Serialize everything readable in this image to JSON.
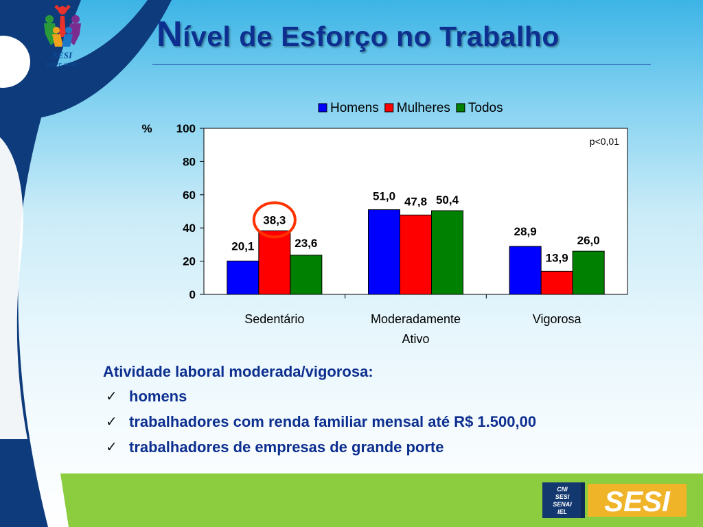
{
  "brand": {
    "logo_name": "SESI",
    "logo_subtitle": "lazer ativo"
  },
  "title": {
    "first_letter": "N",
    "rest": "ível de Esforço no Trabalho"
  },
  "chart_data": {
    "type": "bar",
    "categories": [
      "Sedentário",
      "Moderadamente Ativo",
      "Vigorosa"
    ],
    "category_lines": [
      [
        "Sedentário"
      ],
      [
        "Moderadamente",
        "Ativo"
      ],
      [
        "Vigorosa"
      ]
    ],
    "series": [
      {
        "name": "Homens",
        "values": [
          20.1,
          51.0,
          28.9
        ],
        "labels": [
          "20,1",
          "51,0",
          "28,9"
        ],
        "color": "#0000ff"
      },
      {
        "name": "Mulheres",
        "values": [
          38.3,
          47.8,
          13.9
        ],
        "labels": [
          "38,3",
          "47,8",
          "13,9"
        ],
        "color": "#ff0000"
      },
      {
        "name": "Todos",
        "values": [
          23.6,
          50.4,
          26.0
        ],
        "labels": [
          "23,6",
          "50,4",
          "26,0"
        ],
        "color": "#008000"
      }
    ],
    "ylabel": "%",
    "ylim": [
      0,
      100
    ],
    "yticks": [
      0,
      20,
      40,
      60,
      80,
      100
    ],
    "annotation": "p<0,01",
    "highlight": {
      "series": 1,
      "category": 0,
      "color": "#ff3300"
    },
    "legend_position": "top",
    "grid": false
  },
  "notes": {
    "heading": "Atividade laboral moderada/vigorosa:",
    "check_symbol": "✓",
    "items": [
      "homens",
      "trabalhadores com renda familiar mensal até R$ 1.500,00",
      "trabalhadores de empresas de grande porte"
    ]
  },
  "footer": {
    "badge_lines": [
      "CNI",
      "SESI",
      "SENAI",
      "IEL"
    ],
    "brand": "SESI",
    "colors": {
      "green": "#8ccc3f",
      "navy": "#13386f",
      "gold": "#f0b429"
    }
  },
  "colors": {
    "title": "#0d2f8f",
    "body_text": "#0d2f8f",
    "figure_navy": "#0e3b7c"
  }
}
